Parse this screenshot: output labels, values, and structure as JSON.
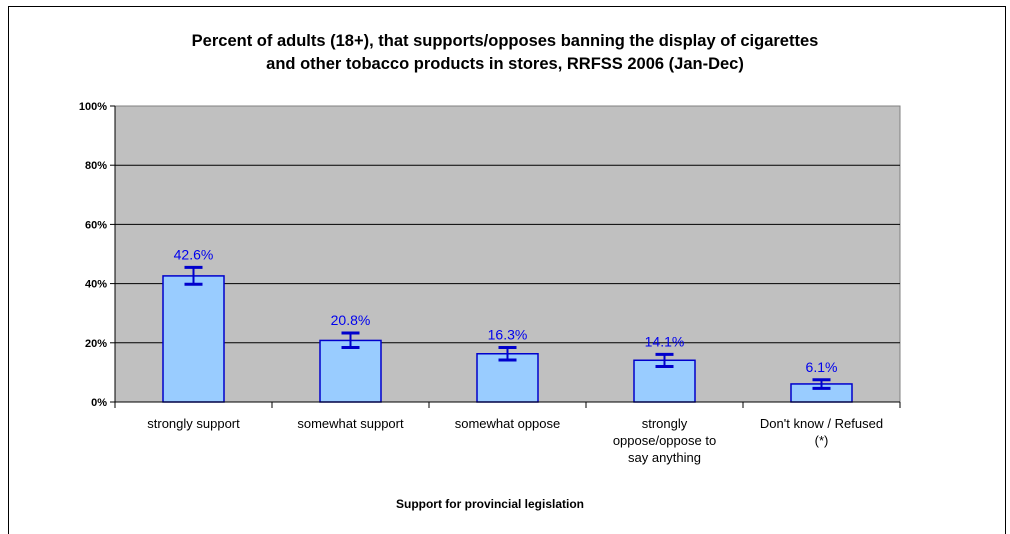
{
  "chart_data": {
    "type": "bar",
    "title_lines": [
      "Percent of adults (18+),  that supports/opposes banning the display of cigarettes",
      "and other tobacco products in stores, RRFSS 2006 (Jan-Dec)"
    ],
    "xlabel": "Support for provincial legislation",
    "ylabel": "",
    "ylim": [
      0,
      100
    ],
    "yticks": [
      "0%",
      "20%",
      "40%",
      "60%",
      "80%",
      "100%"
    ],
    "ytick_values": [
      0,
      20,
      40,
      60,
      80,
      100
    ],
    "categories": [
      [
        "strongly support"
      ],
      [
        "somewhat support"
      ],
      [
        "somewhat oppose"
      ],
      [
        "strongly",
        "oppose/oppose to",
        "say anything"
      ],
      [
        "Don't know / Refused",
        "(*)"
      ]
    ],
    "values": [
      42.6,
      20.8,
      16.3,
      14.1,
      6.1
    ],
    "data_labels": [
      "42.6%",
      "20.8%",
      "16.3%",
      "14.1%",
      "6.1%"
    ],
    "error_low": [
      39.8,
      18.4,
      14.2,
      12.0,
      4.6
    ],
    "error_high": [
      45.5,
      23.3,
      18.4,
      16.1,
      7.5
    ],
    "grid": true,
    "colors": {
      "plot_background": "#c0c0c0",
      "bar_fill": "#99ccff",
      "bar_stroke": "#0000cc",
      "error_bar": "#0000cc",
      "data_label": "#0000ee"
    }
  }
}
